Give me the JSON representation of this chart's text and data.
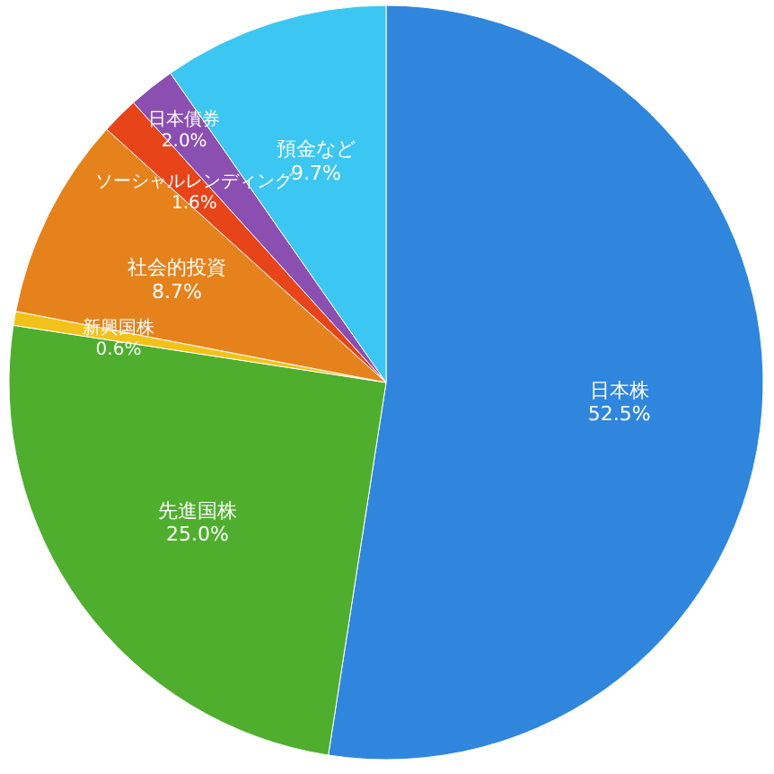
{
  "chart_data": {
    "type": "pie",
    "categories": [
      "日本株",
      "先進国株",
      "新興国株",
      "社会的投資",
      "ソーシャルレンディング",
      "日本債券",
      "預金など"
    ],
    "values": [
      52.5,
      25.0,
      0.6,
      8.7,
      1.6,
      2.0,
      9.7
    ],
    "value_labels": [
      "52.5%",
      "25.0%",
      "0.6%",
      "8.7%",
      "1.6%",
      "2.0%",
      "9.7%"
    ],
    "colors": [
      "#2f86dc",
      "#4fae2e",
      "#f2c21a",
      "#e6821c",
      "#e8441a",
      "#8a4fb0",
      "#3cc6f2"
    ]
  }
}
